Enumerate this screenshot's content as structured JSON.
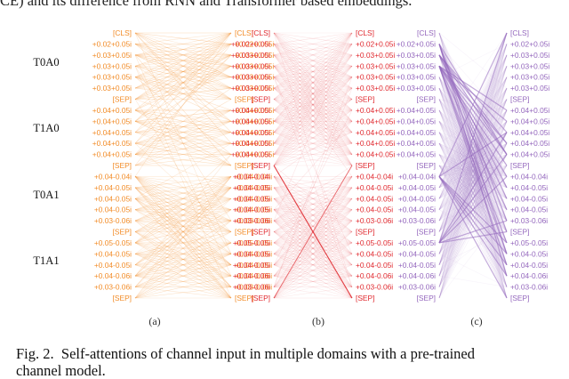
{
  "top_text": "CE) and its difference from RNN and Transformer based embeddings.",
  "figure": {
    "group_labels": [
      "T0A0",
      "T1A0",
      "T0A1",
      "T1A1"
    ],
    "tokens": [
      "[CLS]",
      "+0.02+0.05i",
      "+0.03+0.05i",
      "+0.03+0.05i",
      "+0.03+0.05i",
      "+0.03+0.05i",
      "[SEP]",
      "+0.04+0.05i",
      "+0.04+0.05i",
      "+0.04+0.05i",
      "+0.04+0.05i",
      "+0.04+0.05i",
      "[SEP]",
      "+0.04-0.04i",
      "+0.04-0.05i",
      "+0.04-0.05i",
      "+0.04-0.05i",
      "+0.03-0.06i",
      "[SEP]",
      "+0.05-0.05i",
      "+0.04-0.05i",
      "+0.04-0.05i",
      "+0.04-0.06i",
      "+0.03-0.06i",
      "[SEP]"
    ],
    "panels": [
      {
        "label": "(a)",
        "color": "#f28c28"
      },
      {
        "label": "(b)",
        "color": "#e0282e"
      },
      {
        "label": "(c)",
        "color": "#9467bd"
      }
    ]
  },
  "caption": {
    "label": "Fig. 2.",
    "text": "Self-attentions of channel input in multiple domains with a pre-trained",
    "line2": "channel model."
  }
}
